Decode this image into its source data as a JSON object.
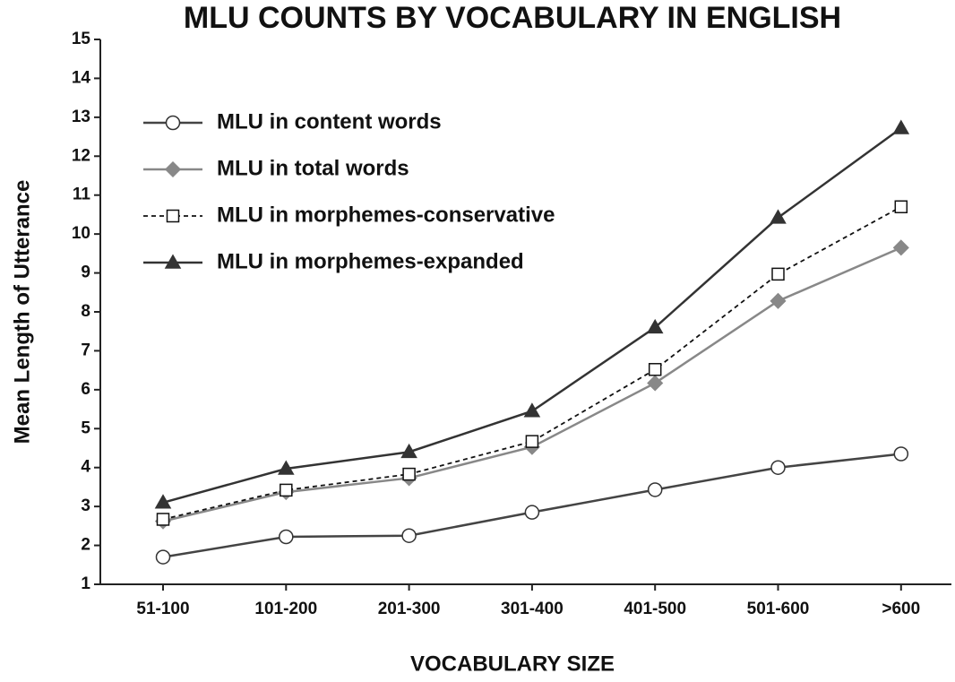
{
  "chart_data": {
    "type": "line",
    "title": "MLU COUNTS BY VOCABULARY IN ENGLISH",
    "x_label": "VOCABULARY SIZE",
    "y_label": "Mean Length of Utterance",
    "categories": [
      "51-100",
      "101-200",
      "201-300",
      "301-400",
      "401-500",
      "501-600",
      ">600"
    ],
    "series": [
      {
        "name": "MLU in content words",
        "color": "#444444",
        "marker": "circle",
        "dashed": false,
        "values": [
          1.7,
          2.22,
          2.25,
          2.85,
          3.43,
          4.0,
          4.35
        ]
      },
      {
        "name": "MLU in total words",
        "color": "#888888",
        "marker": "diamond",
        "dashed": false,
        "values": [
          2.62,
          3.37,
          3.73,
          4.53,
          6.17,
          8.28,
          9.65
        ]
      },
      {
        "name": "MLU in morphemes-conservative",
        "color": "#111111",
        "marker": "square",
        "dashed": true,
        "values": [
          2.67,
          3.42,
          3.83,
          4.67,
          6.52,
          8.97,
          10.7
        ]
      },
      {
        "name": "MLU in morphemes-expanded",
        "color": "#333333",
        "marker": "triangle",
        "dashed": false,
        "values": [
          3.1,
          3.97,
          4.4,
          5.45,
          7.6,
          10.42,
          12.72
        ]
      }
    ],
    "ylim": [
      1,
      15
    ],
    "yticks": [
      1,
      2,
      3,
      4,
      5,
      6,
      7,
      8,
      9,
      10,
      11,
      12,
      13,
      14,
      15
    ],
    "legend": "upper left"
  }
}
